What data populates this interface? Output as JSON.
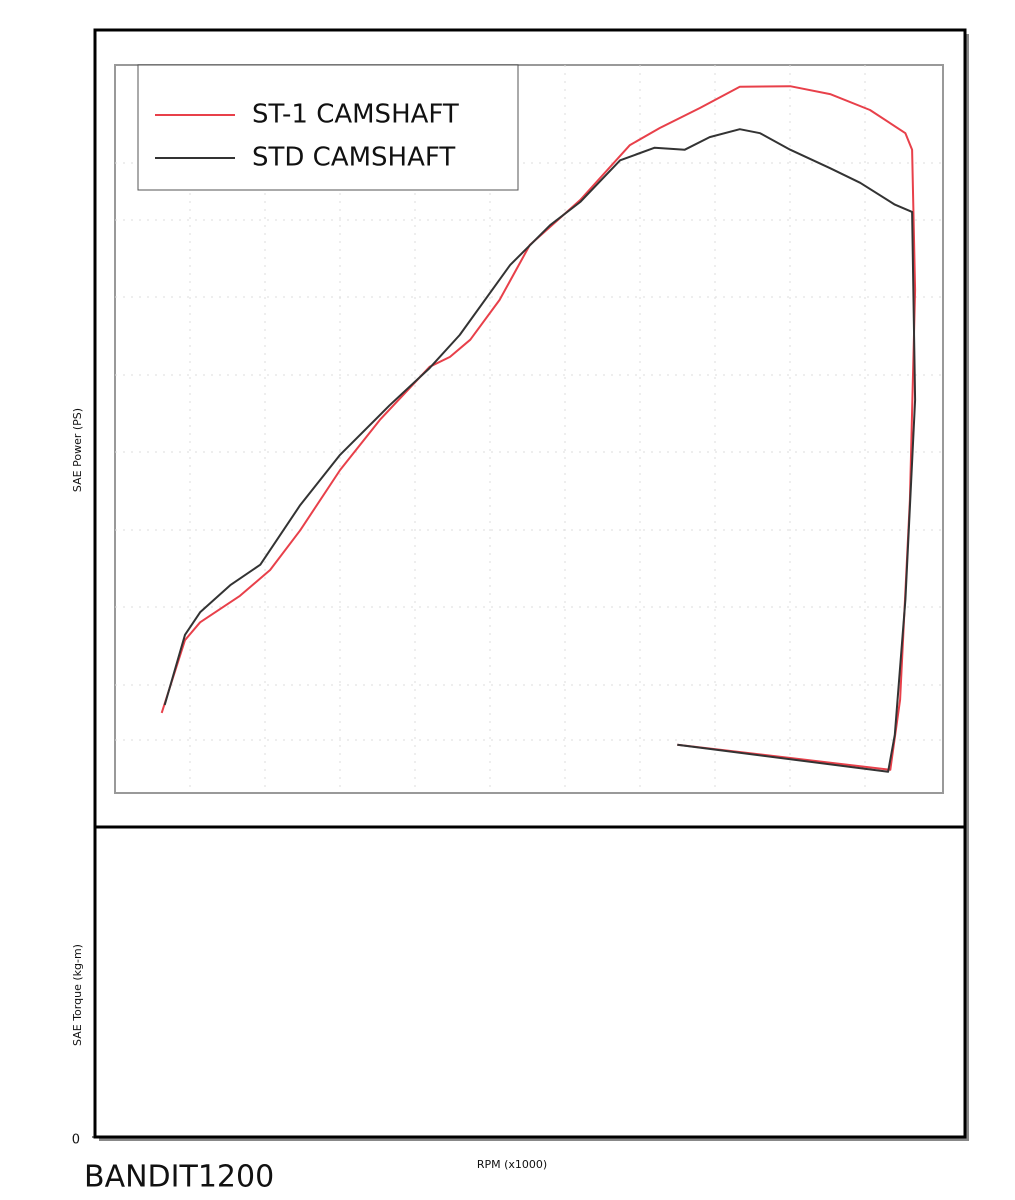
{
  "chart_data": [
    {
      "type": "line",
      "y_label": "SAE Power (PS)",
      "xlim": [
        1,
        12
      ],
      "ylim": [
        0,
        110
      ],
      "series": [
        {
          "name": "ST-1 CAMSHAFT",
          "color": "#e8404a",
          "x": [
            1.62,
            1.93,
            2.13,
            2.66,
            3.06,
            3.46,
            3.99,
            4.52,
            5.18,
            5.45,
            5.72,
            6.11,
            6.51,
            7.18,
            7.84,
            8.24,
            8.77,
            9.3,
            9.97,
            10.5,
            11.03,
            11.5,
            11.59,
            11.63,
            11.56,
            11.43,
            11.3,
            8.47
          ],
          "values": [
            12.1,
            23.1,
            25.8,
            29.8,
            33.7,
            39.7,
            48.8,
            56.4,
            64.4,
            65.9,
            68.5,
            74.5,
            82.8,
            89.6,
            97.9,
            100.5,
            103.5,
            106.7,
            106.8,
            105.6,
            103.2,
            99.7,
            97.2,
            76.0,
            44.3,
            14.1,
            3.5,
            7.3
          ]
        },
        {
          "name": "STD CAMSHAFT",
          "color": "#333333",
          "x": [
            1.66,
            1.93,
            2.13,
            2.53,
            2.93,
            3.46,
            3.99,
            4.65,
            5.18,
            5.58,
            6.25,
            6.78,
            7.18,
            7.71,
            8.17,
            8.57,
            8.9,
            9.3,
            9.57,
            9.97,
            10.5,
            10.9,
            11.36,
            11.59,
            11.63,
            11.5,
            11.36,
            11.27,
            8.47
          ],
          "values": [
            13.3,
            23.9,
            27.3,
            31.4,
            34.5,
            43.5,
            51.1,
            58.6,
            64.2,
            69.2,
            79.8,
            85.8,
            89.3,
            95.6,
            97.5,
            97.2,
            99.1,
            100.3,
            99.7,
            97.2,
            94.4,
            92.2,
            88.9,
            87.8,
            59.4,
            29.2,
            8.8,
            3.2,
            7.3
          ]
        }
      ]
    },
    {
      "type": "line",
      "y_label": "SAE Torque (kg-m)",
      "x_label": "RPM (x1000)",
      "yticks": [
        0
      ]
    }
  ],
  "caption": "BANDIT1200"
}
